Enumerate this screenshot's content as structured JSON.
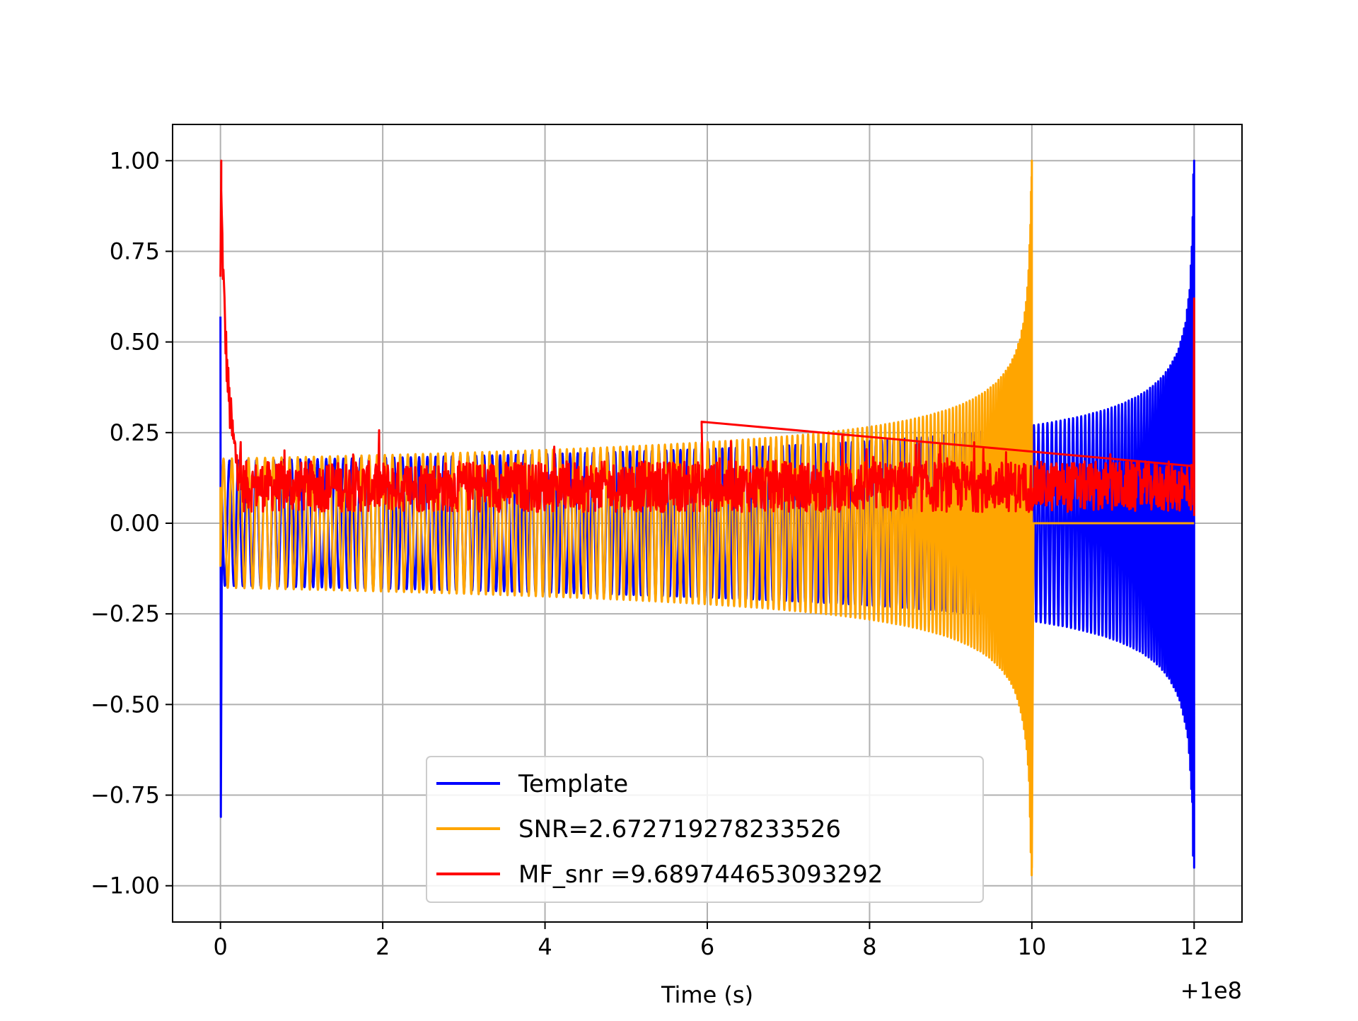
{
  "chart_data": {
    "type": "line",
    "title": "",
    "xlabel": "Time (s)",
    "ylabel": "",
    "x_offset_label": "+1e8",
    "xlim": [
      -0.59,
      12.59
    ],
    "ylim": [
      -1.1,
      1.1
    ],
    "xticks": [
      0,
      2,
      4,
      6,
      8,
      10,
      12
    ],
    "xtick_labels": [
      "0",
      "2",
      "4",
      "6",
      "8",
      "10",
      "12"
    ],
    "yticks": [
      -1.0,
      -0.75,
      -0.5,
      -0.25,
      0.0,
      0.25,
      0.5,
      0.75,
      1.0
    ],
    "ytick_labels": [
      "−1.00",
      "−0.75",
      "−0.50",
      "−0.25",
      "0.00",
      "0.25",
      "0.50",
      "0.75",
      "1.00"
    ],
    "grid": true,
    "legend_position": "lower-center",
    "series": [
      {
        "name": "Template",
        "color": "#0000ff",
        "description_points": [
          {
            "x": 0.0,
            "y": 0.57
          },
          {
            "x": 0.0,
            "y": -0.81
          },
          {
            "x": 0.1,
            "y": 0.1
          },
          {
            "x": 2.0,
            "y": 0.18
          },
          {
            "x": 6.0,
            "y": 0.2
          },
          {
            "x": 10.0,
            "y": 0.25
          },
          {
            "x": 11.0,
            "y": 0.28
          },
          {
            "x": 11.8,
            "y": 0.55
          },
          {
            "x": 12.0,
            "y": 1.0
          },
          {
            "x": 12.0,
            "y": -0.95
          }
        ]
      },
      {
        "name": "SNR=2.672719278233526",
        "color": "#ffa500",
        "description_points": [
          {
            "x": 0.0,
            "y": 0.1
          },
          {
            "x": 0.1,
            "y": -0.17
          },
          {
            "x": 2.0,
            "y": 0.18
          },
          {
            "x": 6.0,
            "y": 0.2
          },
          {
            "x": 8.0,
            "y": 0.25
          },
          {
            "x": 9.5,
            "y": 0.4
          },
          {
            "x": 10.0,
            "y": 1.0
          },
          {
            "x": 10.0,
            "y": -0.95
          },
          {
            "x": 12.0,
            "y": 0.0
          }
        ]
      },
      {
        "name": "MF_snr =9.689744653093292",
        "color": "#ff0000",
        "description_points": [
          {
            "x": 0.0,
            "y": 1.0
          },
          {
            "x": 0.0,
            "y": 0.68
          },
          {
            "x": 0.1,
            "y": 0.35
          },
          {
            "x": 0.2,
            "y": 0.2
          },
          {
            "x": 5.9,
            "y": 0.28
          },
          {
            "x": 10.0,
            "y": 0.27
          },
          {
            "x": 12.0,
            "y": 0.62
          },
          {
            "x": 12.0,
            "y": 0.02
          }
        ]
      }
    ]
  },
  "legend": {
    "entries": [
      {
        "label": "Template",
        "color": "#0000ff"
      },
      {
        "label": "SNR=2.672719278233526",
        "color": "#ffa500"
      },
      {
        "label": "MF_snr =9.689744653093292",
        "color": "#ff0000"
      }
    ]
  }
}
